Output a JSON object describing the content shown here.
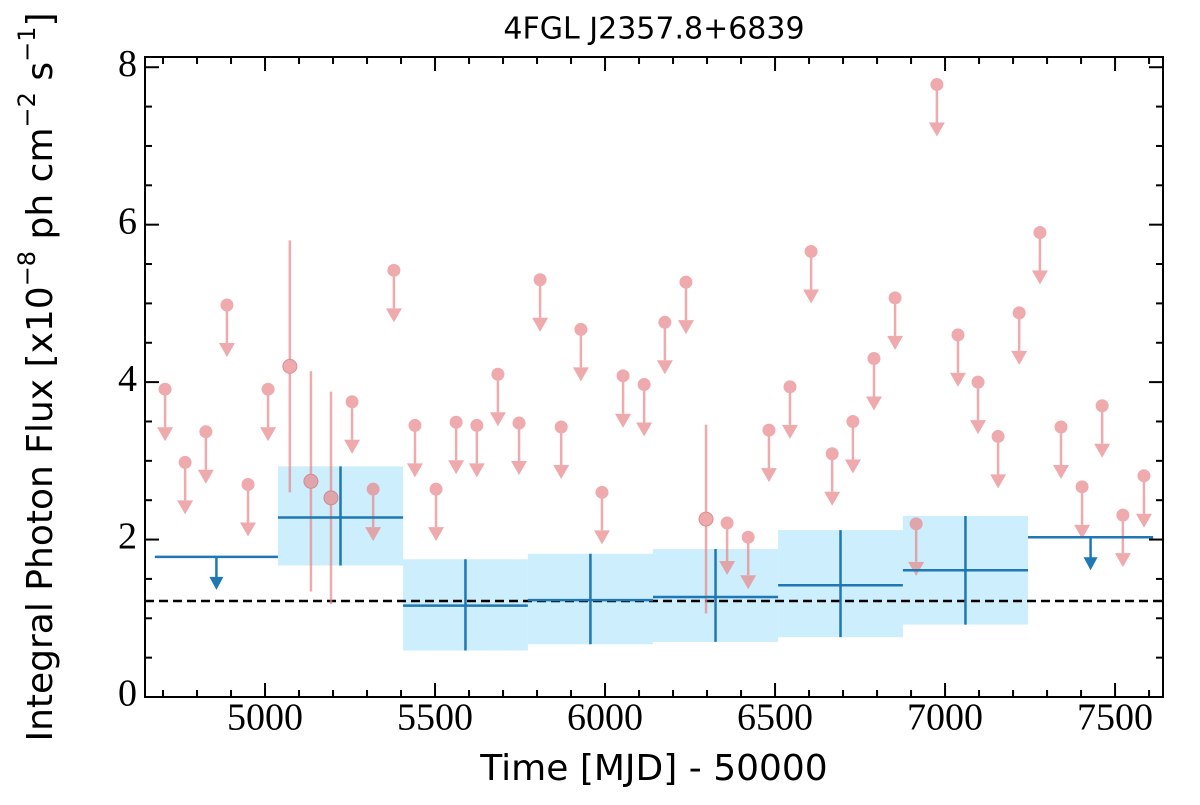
{
  "chart_data": {
    "type": "lightcurve",
    "title": "4FGL J2357.8+6839",
    "xlabel": "Time [MJD] - 50000",
    "ylabel": [
      {
        "text": "Integral Photon Flux [x10"
      },
      {
        "text": "−8",
        "sup": true
      },
      {
        "text": " ph cm"
      },
      {
        "text": "−2",
        "sup": true
      },
      {
        "text": " s"
      },
      {
        "text": "−1",
        "sup": true
      },
      {
        "text": "]"
      }
    ],
    "xlim": [
      4647,
      7641
    ],
    "ylim": [
      0,
      8.13
    ],
    "xticks": [
      5000,
      5500,
      6000,
      6500,
      7000,
      7500
    ],
    "yticks": [
      0,
      2,
      4,
      6,
      8
    ],
    "xminorticks": [
      4700,
      4800,
      4900,
      5100,
      5200,
      5300,
      5400,
      5600,
      5700,
      5800,
      5900,
      6100,
      6200,
      6300,
      6400,
      6600,
      6700,
      6800,
      6900,
      7100,
      7200,
      7300,
      7400,
      7600
    ],
    "yminorticks": [
      0.5,
      1,
      1.5,
      2.5,
      3,
      3.5,
      4.5,
      5,
      5.5,
      6.5,
      7,
      7.5
    ],
    "upper_limits": {
      "color": "#e8878a",
      "x": [
        4706,
        4765,
        4826,
        4888,
        4950,
        5009,
        5256,
        5318,
        5379,
        5441,
        5503,
        5562,
        5623,
        5685,
        5747,
        5809,
        5871,
        5929,
        5991,
        6053,
        6115,
        6176,
        6238,
        6359,
        6421,
        6482,
        6544,
        6606,
        6668,
        6729,
        6791,
        6853,
        6915,
        6976,
        7038,
        7097,
        7156,
        7218,
        7279,
        7341,
        7403,
        7462,
        7523,
        7585
      ],
      "values": [
        3.91,
        2.98,
        3.37,
        4.98,
        2.7,
        3.91,
        3.75,
        2.64,
        5.42,
        3.45,
        2.64,
        3.49,
        3.45,
        4.1,
        3.48,
        5.3,
        3.43,
        4.67,
        2.6,
        4.08,
        3.97,
        4.76,
        5.27,
        2.21,
        2.03,
        3.39,
        3.94,
        5.66,
        3.09,
        3.5,
        4.3,
        5.07,
        2.2,
        7.78,
        4.6,
        4.0,
        3.31,
        4.88,
        5.9,
        3.43,
        2.67,
        3.7,
        2.31,
        2.81
      ]
    },
    "detections": {
      "color": "#e8878a",
      "x": [
        5073,
        5135,
        5194,
        6297
      ],
      "values": [
        4.2,
        2.74,
        2.53,
        2.26
      ],
      "yerr": [
        1.6,
        1.4,
        1.35,
        1.2
      ]
    },
    "bins": {
      "color": "#1f77b4",
      "band_color": "#cdeefc",
      "edges": [
        4676,
        5038,
        5406,
        5773,
        6141,
        6509,
        6876,
        7244,
        7612
      ],
      "values": [
        1.78,
        2.28,
        1.16,
        1.23,
        1.27,
        1.42,
        1.61,
        2.03
      ],
      "lower": [
        null,
        1.67,
        0.59,
        0.67,
        0.7,
        0.76,
        0.92,
        null
      ],
      "upper": [
        null,
        2.93,
        1.75,
        1.82,
        1.88,
        2.12,
        2.3,
        null
      ]
    },
    "reference_line": {
      "value": 1.22,
      "color": "#000000",
      "dashed": true
    }
  }
}
